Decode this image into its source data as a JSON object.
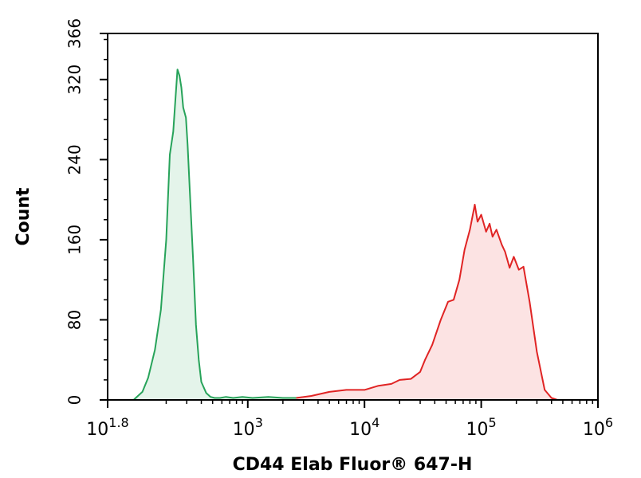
{
  "chart_data": {
    "type": "area",
    "title": "",
    "xlabel": "CD44 Elab Fluor® 647-H",
    "ylabel": "Count",
    "x_scale": "log",
    "xlim": [
      63,
      1000000
    ],
    "ylim": [
      0,
      366
    ],
    "x_ticks": [
      {
        "value": 63,
        "base": "10",
        "exp": "1.8"
      },
      {
        "value": 1000,
        "base": "10",
        "exp": "3"
      },
      {
        "value": 10000,
        "base": "10",
        "exp": "4"
      },
      {
        "value": 100000,
        "base": "10",
        "exp": "5"
      },
      {
        "value": 1000000,
        "base": "10",
        "exp": "6"
      }
    ],
    "y_ticks": [
      {
        "value": 0,
        "label": "0"
      },
      {
        "value": 80,
        "label": "80"
      },
      {
        "value": 160,
        "label": "160"
      },
      {
        "value": 240,
        "label": "240"
      },
      {
        "value": 320,
        "label": "320"
      },
      {
        "value": 366,
        "label": "366"
      }
    ],
    "grid": false,
    "legend": "none",
    "series": [
      {
        "line_color": "#27a35a",
        "fill_color": "#e4f4ea",
        "x": [
          105,
          125,
          140,
          160,
          180,
          200,
          215,
          230,
          240,
          250,
          260,
          270,
          280,
          295,
          305,
          320,
          340,
          360,
          380,
          400,
          440,
          480,
          520,
          580,
          650,
          750,
          900,
          1100,
          1500,
          2000,
          2600,
          3200,
          3600
        ],
        "y": [
          0,
          8,
          22,
          50,
          90,
          160,
          245,
          268,
          300,
          330,
          324,
          312,
          292,
          282,
          255,
          205,
          140,
          75,
          40,
          18,
          7,
          3,
          2,
          2,
          3,
          2,
          3,
          2,
          3,
          2,
          2,
          3,
          2
        ]
      },
      {
        "line_color": "#e02424",
        "fill_color": "#fce3e3",
        "x": [
          2600,
          3500,
          5000,
          7000,
          10000,
          13000,
          17000,
          20000,
          25000,
          30000,
          33000,
          38000,
          45000,
          52000,
          58000,
          65000,
          72000,
          80000,
          88000,
          93000,
          100000,
          110000,
          118000,
          125000,
          135000,
          150000,
          160000,
          175000,
          190000,
          210000,
          230000,
          260000,
          300000,
          350000,
          400000,
          450000
        ],
        "y": [
          2,
          4,
          8,
          10,
          10,
          14,
          16,
          20,
          21,
          28,
          40,
          55,
          80,
          98,
          100,
          120,
          150,
          170,
          195,
          178,
          185,
          168,
          176,
          163,
          170,
          155,
          148,
          132,
          143,
          130,
          133,
          98,
          48,
          10,
          2,
          0
        ]
      }
    ]
  }
}
